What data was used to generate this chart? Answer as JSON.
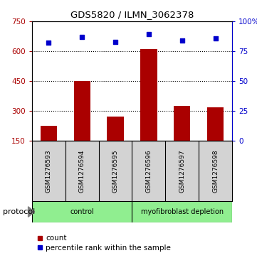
{
  "title": "GDS5820 / ILMN_3062378",
  "samples": [
    "GSM1276593",
    "GSM1276594",
    "GSM1276595",
    "GSM1276596",
    "GSM1276597",
    "GSM1276598"
  ],
  "counts": [
    225,
    450,
    270,
    610,
    325,
    318
  ],
  "percentile_ranks": [
    82,
    87,
    83,
    89,
    84,
    86
  ],
  "groups": [
    "control",
    "control",
    "control",
    "myofibroblast depletion",
    "myofibroblast depletion",
    "myofibroblast depletion"
  ],
  "bar_color": "#AA0000",
  "dot_color": "#0000CC",
  "left_yticks": [
    150,
    300,
    450,
    600,
    750
  ],
  "left_ylim": [
    150,
    750
  ],
  "right_yticks": [
    0,
    25,
    50,
    75,
    100
  ],
  "right_ylim": [
    0,
    100
  ],
  "hgrid_values": [
    300,
    450,
    600
  ],
  "background_color": "#ffffff",
  "sample_bg_color": "#d3d3d3",
  "group_color": "#90EE90",
  "protocol_label": "protocol",
  "legend_count_label": "count",
  "legend_pct_label": "percentile rank within the sample"
}
